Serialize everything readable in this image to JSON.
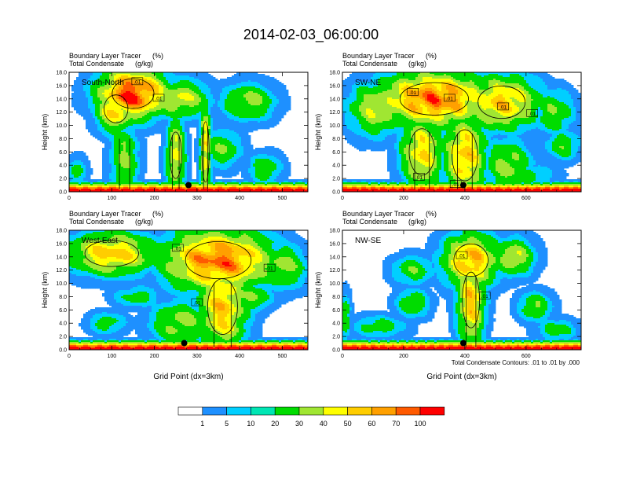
{
  "figure": {
    "title": "2014-02-03_06:00:00",
    "footnote": "Total Condensate Contours: .01 to .01 by .000"
  },
  "chart_data": [
    {
      "type": "heatmap",
      "panel_label": "South-North",
      "subtitle_line1": "Boundary Layer Tracer",
      "subtitle_unit1": "(%)",
      "subtitle_line2": "Total Condensate",
      "subtitle_unit2": "(g/kg)",
      "ylabel": "Height (km)",
      "xlabel": "",
      "xlim": [
        0,
        560
      ],
      "ylim": [
        0,
        18
      ],
      "xticks": [
        "0",
        "100",
        "200",
        "300",
        "400",
        "500"
      ],
      "yticks": [
        "0.0",
        "2.0",
        "4.0",
        "6.0",
        "8.0",
        "10.0",
        "12.0",
        "14.0",
        "16.0",
        "18.0"
      ],
      "contour_labels": [
        ".01",
        ".01"
      ],
      "contour_label_positions": [
        [
          160,
          16.6
        ],
        [
          210,
          14.1
        ]
      ],
      "marker": [
        280,
        1.0
      ],
      "blobs": [
        {
          "x": 150,
          "y": 14.8,
          "rx": 70,
          "ry": 3.2,
          "v": 72
        },
        {
          "x": 110,
          "y": 12.5,
          "rx": 40,
          "ry": 3.0,
          "v": 45
        },
        {
          "x": 260,
          "y": 14.0,
          "rx": 60,
          "ry": 2.5,
          "v": 32
        },
        {
          "x": 420,
          "y": 13.5,
          "rx": 55,
          "ry": 2.5,
          "v": 25
        },
        {
          "x": 320,
          "y": 6.0,
          "rx": 12,
          "ry": 6.5,
          "v": 40
        },
        {
          "x": 250,
          "y": 5.5,
          "rx": 20,
          "ry": 5.0,
          "v": 35
        },
        {
          "x": 360,
          "y": 6.5,
          "rx": 40,
          "ry": 2.5,
          "v": 20
        },
        {
          "x": 460,
          "y": 3.5,
          "rx": 35,
          "ry": 2.0,
          "v": 18
        },
        {
          "x": 130,
          "y": 5.0,
          "rx": 30,
          "ry": 5.0,
          "v": 22
        },
        {
          "x": 20,
          "y": 3.0,
          "rx": 20,
          "ry": 2.0,
          "v": 14
        }
      ]
    },
    {
      "type": "heatmap",
      "panel_label": "SW-NE",
      "subtitle_line1": "Boundary Layer Tracer",
      "subtitle_unit1": "(%)",
      "subtitle_line2": "Total Condensate",
      "subtitle_unit2": "(g/kg)",
      "ylabel": "Height (km)",
      "xlabel": "",
      "xlim": [
        0,
        780
      ],
      "ylim": [
        0,
        18
      ],
      "xticks": [
        "0",
        "200",
        "400",
        "600"
      ],
      "yticks": [
        "0.0",
        "2.0",
        "4.0",
        "6.0",
        "8.0",
        "10.0",
        "12.0",
        "14.0",
        "16.0",
        "18.0"
      ],
      "contour_labels": [
        ".01",
        ".01",
        ".01",
        ".01",
        ".01",
        ".01"
      ],
      "contour_label_positions": [
        [
          230,
          15.0
        ],
        [
          350,
          14.1
        ],
        [
          525,
          12.8
        ],
        [
          620,
          11.8
        ],
        [
          250,
          2.2
        ],
        [
          370,
          1.1
        ]
      ],
      "marker": [
        395,
        1.0
      ],
      "blobs": [
        {
          "x": 300,
          "y": 14.0,
          "rx": 160,
          "ry": 3.5,
          "v": 62
        },
        {
          "x": 520,
          "y": 13.5,
          "rx": 110,
          "ry": 3.5,
          "v": 45
        },
        {
          "x": 110,
          "y": 12.5,
          "rx": 80,
          "ry": 3.5,
          "v": 30
        },
        {
          "x": 690,
          "y": 12.0,
          "rx": 60,
          "ry": 3.0,
          "v": 20
        },
        {
          "x": 260,
          "y": 6.0,
          "rx": 60,
          "ry": 5.0,
          "v": 40
        },
        {
          "x": 400,
          "y": 5.5,
          "rx": 60,
          "ry": 5.5,
          "v": 45
        },
        {
          "x": 540,
          "y": 4.0,
          "rx": 70,
          "ry": 3.5,
          "v": 25
        },
        {
          "x": 720,
          "y": 7.0,
          "rx": 50,
          "ry": 2.0,
          "v": 18
        },
        {
          "x": 600,
          "y": 2.5,
          "rx": 80,
          "ry": 1.5,
          "v": 15
        }
      ]
    },
    {
      "type": "heatmap",
      "panel_label": "West-East",
      "subtitle_line1": "Boundary Layer Tracer",
      "subtitle_unit1": "(%)",
      "subtitle_line2": "Total Condensate",
      "subtitle_unit2": "(g/kg)",
      "ylabel": "Height (km)",
      "xlabel": "Grid Point (dx=3km)",
      "xlim": [
        0,
        560
      ],
      "ylim": [
        0,
        18
      ],
      "xticks": [
        "0",
        "100",
        "200",
        "300",
        "400",
        "500"
      ],
      "yticks": [
        "0.0",
        "2.0",
        "4.0",
        "6.0",
        "8.0",
        "10.0",
        "12.0",
        "14.0",
        "16.0",
        "18.0"
      ],
      "contour_labels": [
        ".01",
        ".01",
        ".01"
      ],
      "contour_label_positions": [
        [
          255,
          15.3
        ],
        [
          470,
          12.3
        ],
        [
          300,
          7.1
        ]
      ],
      "marker": [
        270,
        1.0
      ],
      "blobs": [
        {
          "x": 350,
          "y": 13.5,
          "rx": 110,
          "ry": 4.0,
          "v": 62
        },
        {
          "x": 100,
          "y": 14.5,
          "rx": 90,
          "ry": 2.8,
          "v": 45
        },
        {
          "x": 500,
          "y": 12.5,
          "rx": 50,
          "ry": 3.0,
          "v": 25
        },
        {
          "x": 360,
          "y": 6.5,
          "rx": 50,
          "ry": 6.0,
          "v": 45
        },
        {
          "x": 260,
          "y": 4.0,
          "rx": 60,
          "ry": 3.0,
          "v": 25
        },
        {
          "x": 90,
          "y": 4.0,
          "rx": 40,
          "ry": 1.5,
          "v": 15
        },
        {
          "x": 160,
          "y": 8.0,
          "rx": 50,
          "ry": 1.5,
          "v": 14
        },
        {
          "x": 430,
          "y": 8.0,
          "rx": 40,
          "ry": 2.0,
          "v": 22
        }
      ]
    },
    {
      "type": "heatmap",
      "panel_label": "NW-SE",
      "subtitle_line1": "Boundary Layer Tracer",
      "subtitle_unit1": "(%)",
      "subtitle_line2": "Total Condensate",
      "subtitle_unit2": "(g/kg)",
      "ylabel": "Height (km)",
      "xlabel": "Grid Point (dx=3km)",
      "xlim": [
        0,
        780
      ],
      "ylim": [
        0,
        18
      ],
      "xticks": [
        "0",
        "200",
        "400",
        "600"
      ],
      "yticks": [
        "0.0",
        "2.0",
        "4.0",
        "6.0",
        "8.0",
        "10.0",
        "12.0",
        "14.0",
        "16.0",
        "18.0"
      ],
      "contour_labels": [
        ".01",
        ".01"
      ],
      "contour_label_positions": [
        [
          390,
          14.2
        ],
        [
          465,
          8.1
        ]
      ],
      "marker": [
        395,
        1.0
      ],
      "blobs": [
        {
          "x": 420,
          "y": 13.5,
          "rx": 80,
          "ry": 3.5,
          "v": 50
        },
        {
          "x": 420,
          "y": 7.5,
          "rx": 40,
          "ry": 6.0,
          "v": 45
        },
        {
          "x": 560,
          "y": 14.0,
          "rx": 60,
          "ry": 2.5,
          "v": 30
        },
        {
          "x": 230,
          "y": 12.0,
          "rx": 60,
          "ry": 2.0,
          "v": 18
        },
        {
          "x": 230,
          "y": 7.0,
          "rx": 50,
          "ry": 2.0,
          "v": 18
        },
        {
          "x": 120,
          "y": 3.5,
          "rx": 80,
          "ry": 1.5,
          "v": 15
        },
        {
          "x": 630,
          "y": 6.5,
          "rx": 50,
          "ry": 2.0,
          "v": 20
        },
        {
          "x": 700,
          "y": 3.0,
          "rx": 60,
          "ry": 1.5,
          "v": 15
        },
        {
          "x": 10,
          "y": 5.0,
          "rx": 15,
          "ry": 3.0,
          "v": 20
        }
      ]
    }
  ],
  "colorbar": {
    "labels": [
      "1",
      "5",
      "10",
      "20",
      "30",
      "40",
      "50",
      "60",
      "70",
      "100"
    ],
    "colors": [
      "#ffffff",
      "#1e90ff",
      "#00cfff",
      "#00e6b4",
      "#00dc00",
      "#a0e632",
      "#ffff00",
      "#ffcd00",
      "#ffa000",
      "#ff5a00",
      "#ff0000"
    ]
  }
}
